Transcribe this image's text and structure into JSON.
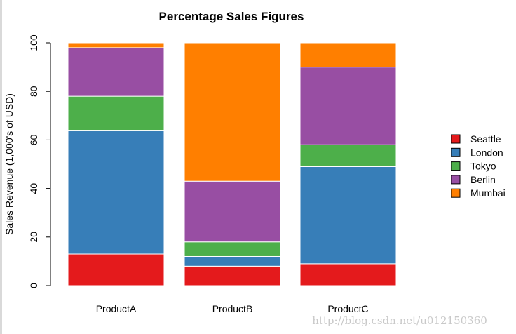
{
  "chart_data": {
    "type": "bar",
    "stacked": true,
    "title": "Percentage Sales Figures",
    "xlabel": "",
    "ylabel": "Sales Revenue (1,000's of USD)",
    "ylim": [
      0,
      100
    ],
    "yticks": [
      "0",
      "20",
      "40",
      "60",
      "80",
      "100"
    ],
    "categories": [
      "ProductA",
      "ProductB",
      "ProductC"
    ],
    "series": [
      {
        "name": "Seattle",
        "color": "#e41a1c",
        "values": [
          13,
          8,
          9
        ]
      },
      {
        "name": "London",
        "color": "#377eb8",
        "values": [
          51,
          4,
          40
        ]
      },
      {
        "name": "Tokyo",
        "color": "#4daf4a",
        "values": [
          14,
          6,
          9
        ]
      },
      {
        "name": "Berlin",
        "color": "#984ea3",
        "values": [
          20,
          25,
          32
        ]
      },
      {
        "name": "Mumbai",
        "color": "#ff7f00",
        "values": [
          2,
          57,
          10
        ]
      }
    ],
    "legend_position": "right",
    "grid": false
  },
  "watermark": "http://blog.csdn.net/u012150360"
}
